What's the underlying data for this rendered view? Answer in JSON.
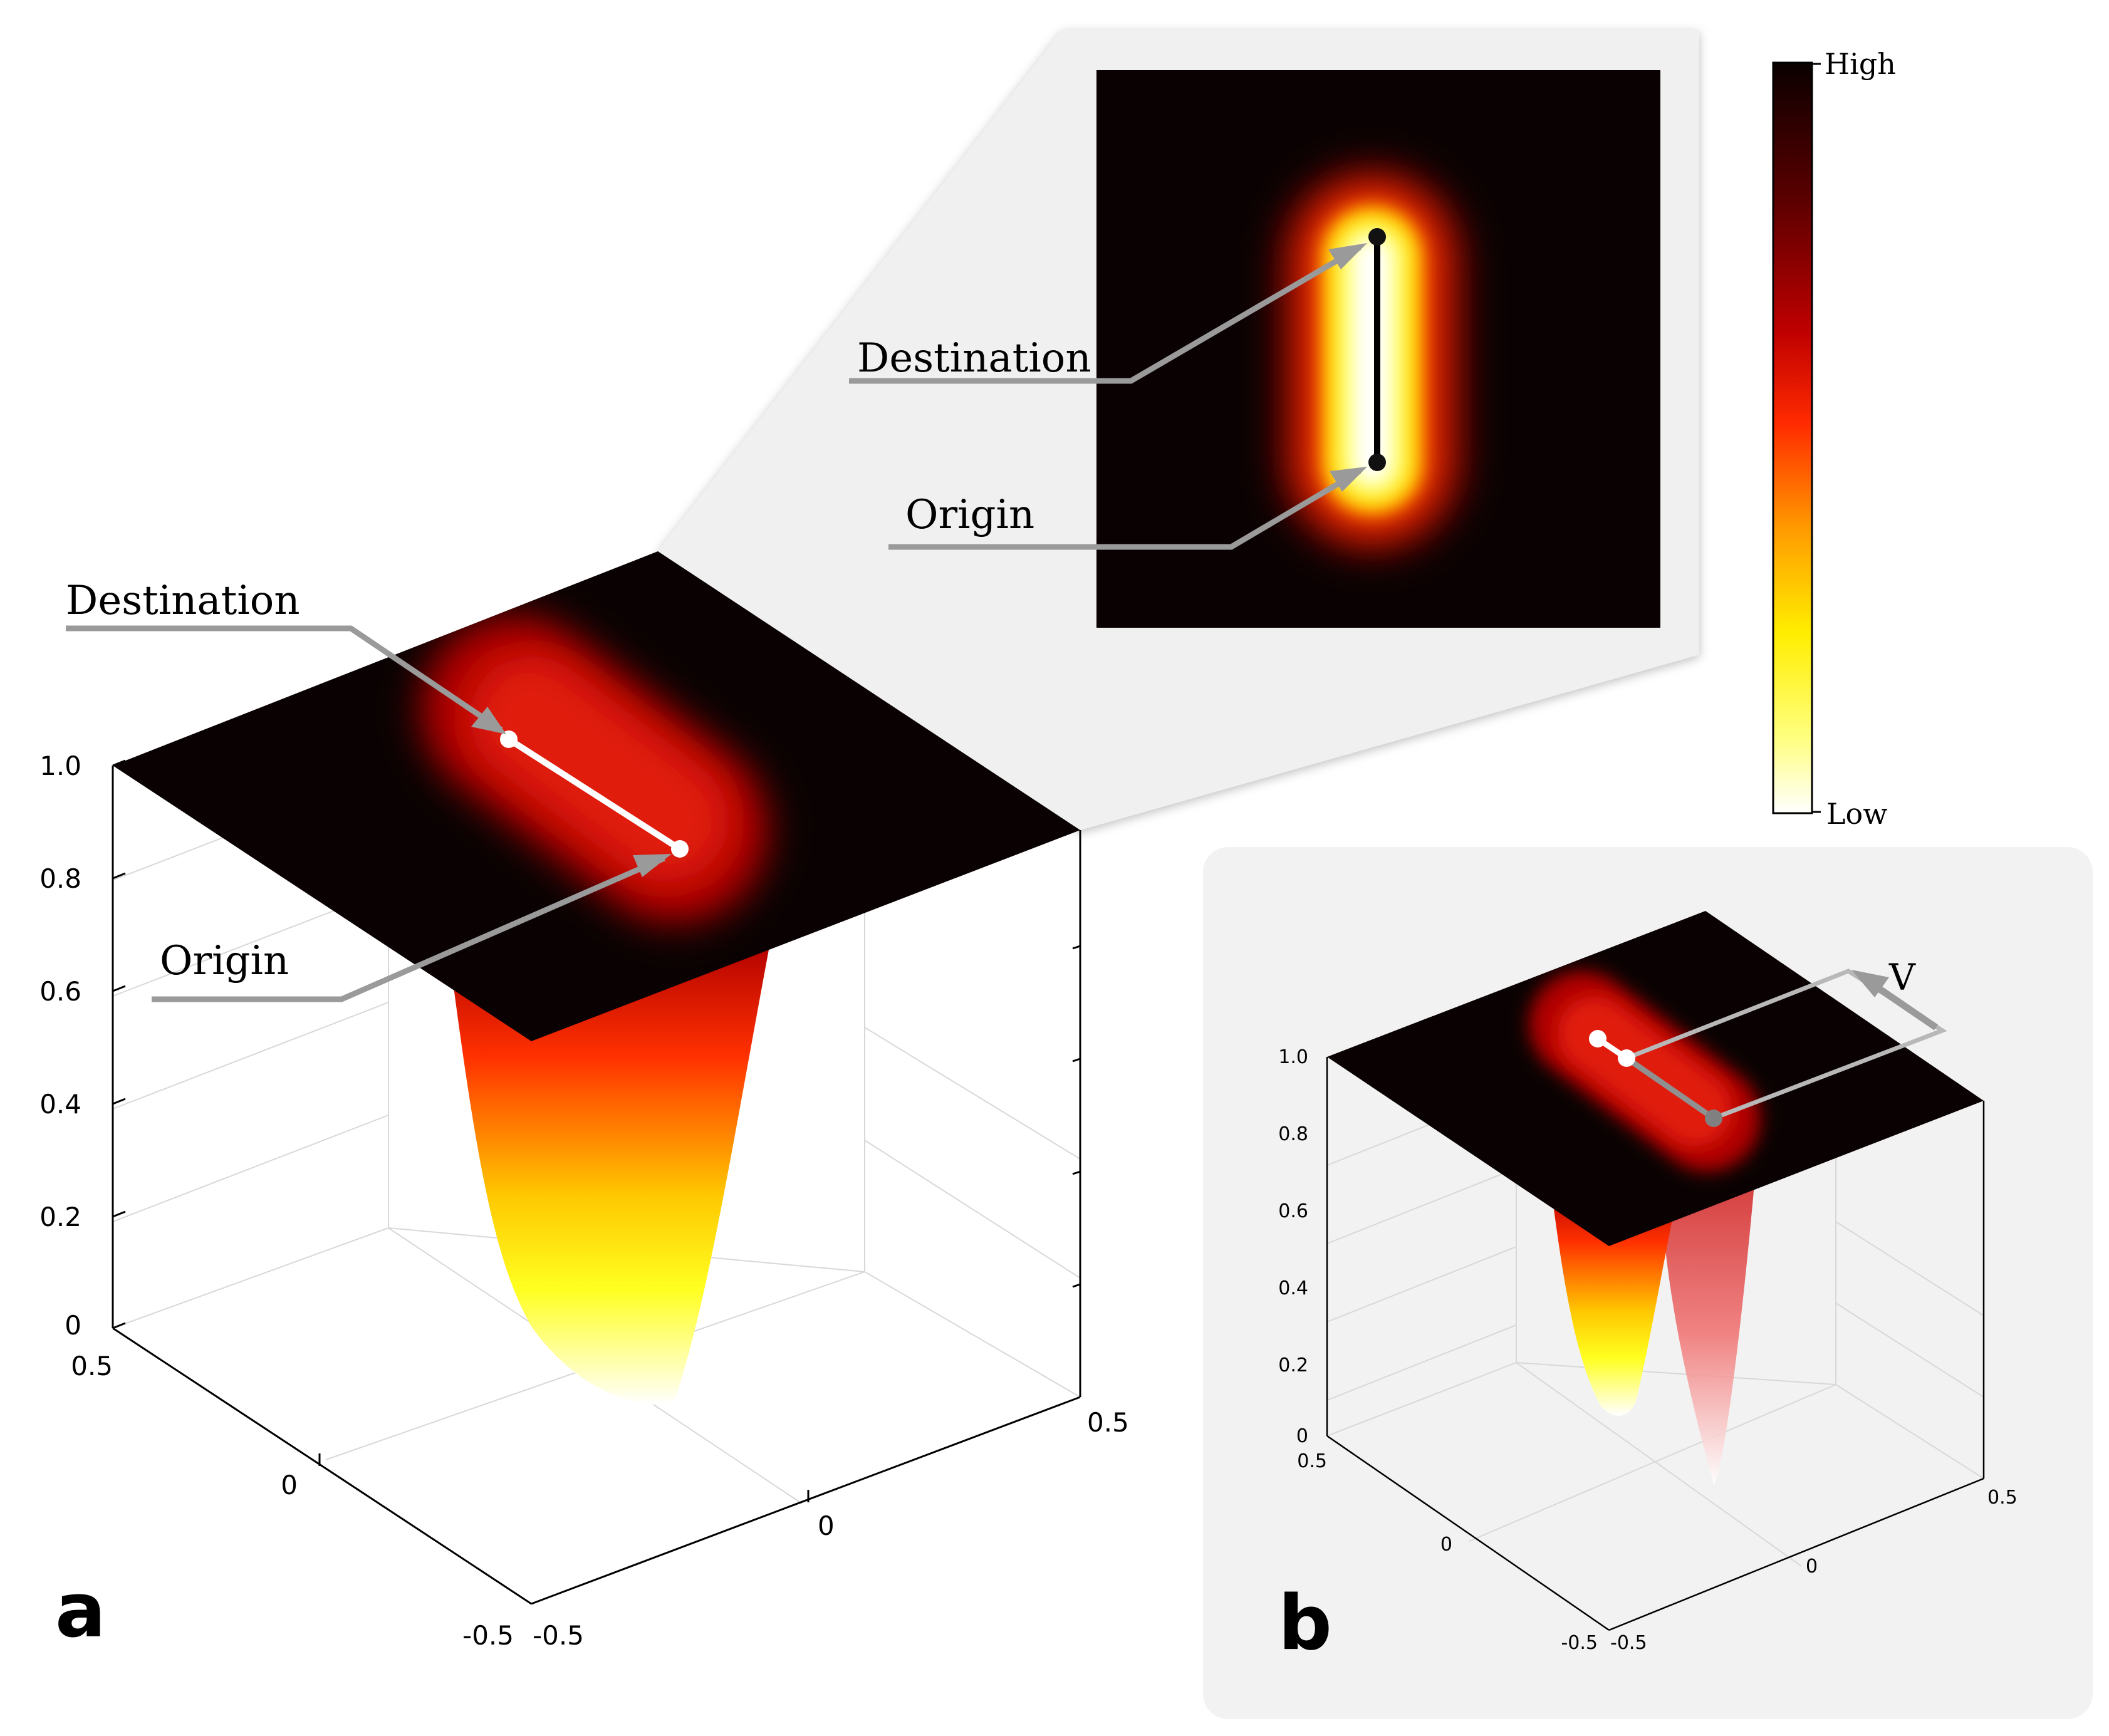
{
  "panel_a": {
    "label": "a",
    "z_ticks": [
      "0",
      "0.2",
      "0.4",
      "0.6",
      "0.8",
      "1.0"
    ],
    "x_ticks": [
      "0.5",
      "0",
      "-0.5"
    ],
    "y_ticks": [
      "-0.5",
      "0",
      "0.5"
    ],
    "callouts": {
      "destination": "Destination",
      "origin": "Origin"
    }
  },
  "inset": {
    "callouts": {
      "destination": "Destination",
      "origin": "Origin"
    }
  },
  "colorbar": {
    "high": "High",
    "low": "Low"
  },
  "panel_b": {
    "label": "b",
    "z_ticks": [
      "0",
      "0.2",
      "0.4",
      "0.6",
      "0.8",
      "1.0"
    ],
    "x_ticks": [
      "0.5",
      "0",
      "-0.5"
    ],
    "y_ticks": [
      "-0.5",
      "0",
      "0.5"
    ],
    "velocity_label": "V"
  },
  "colors": {
    "surface_dark": "#0a0202",
    "callout_gray": "#9a9a9a",
    "panel_bg": "#f2f2f2"
  }
}
